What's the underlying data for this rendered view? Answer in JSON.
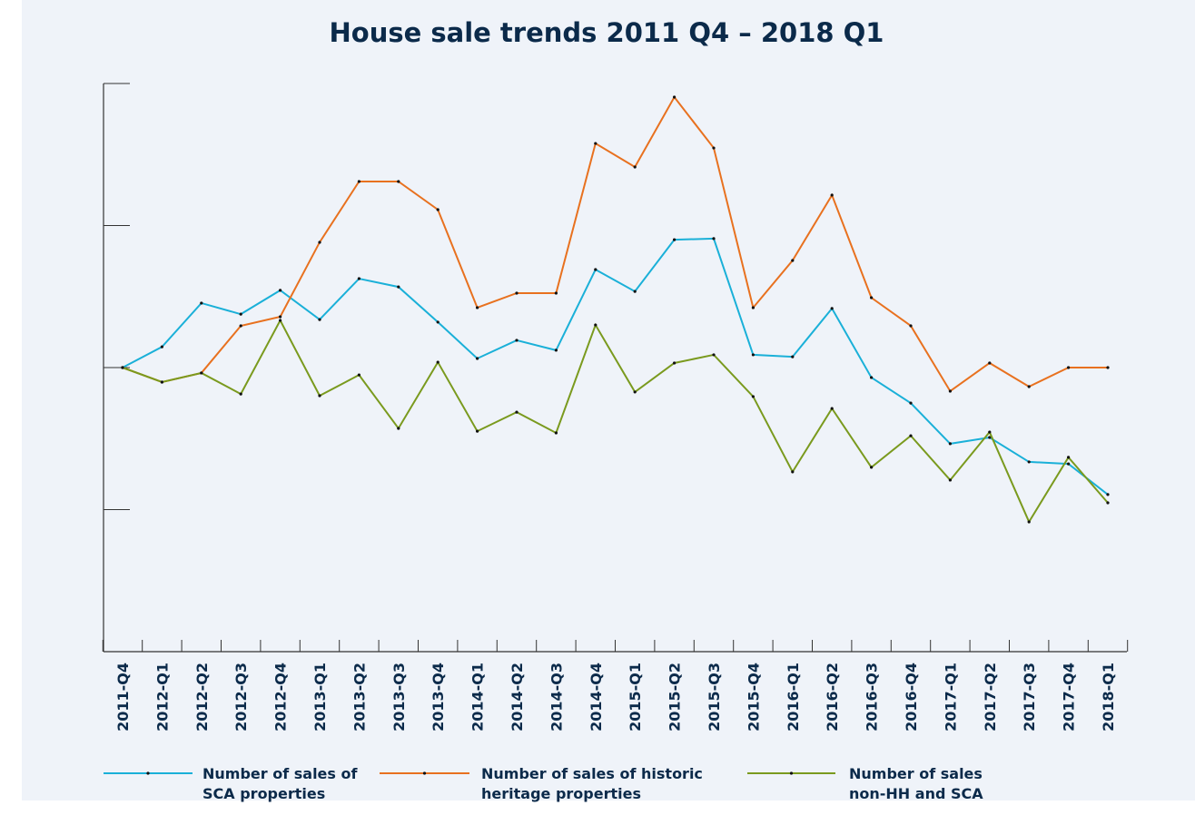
{
  "chart_data": {
    "type": "line",
    "title": "House sale trends  2011 Q4 – 2018 Q1",
    "categories": [
      "2011-Q4",
      "2012-Q1",
      "2012-Q2",
      "2012-Q3",
      "2012-Q4",
      "2013-Q1",
      "2013-Q2",
      "2013-Q3",
      "2013-Q4",
      "2014-Q1",
      "2014-Q2",
      "2014-Q3",
      "2014-Q4",
      "2015-Q1",
      "2015-Q2",
      "2015-Q3",
      "2015-Q4",
      "2016-Q1",
      "2016-Q2",
      "2016-Q3",
      "2016-Q4",
      "2017-Q1",
      "2017-Q2",
      "2017-Q3",
      "2017-Q4",
      "2018-Q1"
    ],
    "ylim": [
      0,
      200
    ],
    "yticks": [
      0,
      50,
      100,
      150,
      200
    ],
    "grid": false,
    "legend": "bottom",
    "series": [
      {
        "name": "Number of sales of SCA properties",
        "color": "#1ab0d8",
        "values": [
          100,
          107.3,
          122.7,
          118.8,
          127.2,
          116.9,
          131.3,
          128.4,
          116.0,
          103.2,
          109.6,
          106.1,
          134.5,
          126.8,
          145.0,
          145.4,
          104.5,
          103.8,
          120.8,
          96.5,
          87.5,
          73.2,
          75.4,
          66.8,
          66.1,
          55.3
        ]
      },
      {
        "name": "Number of sales of historic heritage properties",
        "color": "#e8711f",
        "values": [
          100,
          94.9,
          98.1,
          114.7,
          117.9,
          144.1,
          165.5,
          165.5,
          155.6,
          121.1,
          126.2,
          126.2,
          178.9,
          170.6,
          195.2,
          177.3,
          121.1,
          137.7,
          160.7,
          124.6,
          114.7,
          91.7,
          101.6,
          93.3,
          100,
          100
        ]
      },
      {
        "name": "Number of sales non-HH and SCA",
        "color": "#7a9a1e",
        "values": [
          100,
          94.9,
          98.1,
          90.7,
          116.6,
          90.1,
          97.4,
          78.6,
          101.9,
          77.6,
          84.3,
          77.0,
          115.0,
          91.4,
          101.6,
          104.5,
          89.8,
          63.3,
          85.6,
          64.9,
          76.0,
          60.4,
          77.3,
          45.7,
          68.4,
          52.4
        ]
      }
    ]
  }
}
